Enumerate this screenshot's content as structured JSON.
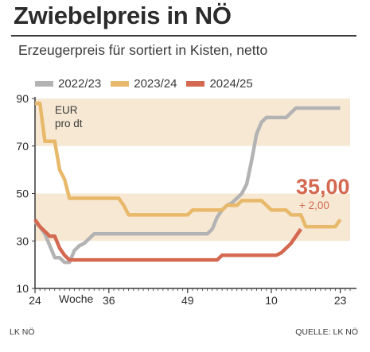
{
  "chart_data": {
    "type": "line",
    "title": "Zwiebelpreis in NÖ",
    "subtitle": "Erzeugerpreis für sortiert in Kisten, netto",
    "unit": "EUR\npro dt",
    "xlabel": "Woche",
    "ylim": [
      10,
      90
    ],
    "yticks": [
      10,
      30,
      50,
      70,
      90
    ],
    "xlim": [
      0,
      64
    ],
    "xticks": [
      {
        "pos": 0,
        "label": "24"
      },
      {
        "pos": 15,
        "label": "36"
      },
      {
        "pos": 31,
        "label": "49"
      },
      {
        "pos": 48,
        "label": "10"
      },
      {
        "pos": 62,
        "label": "23"
      }
    ],
    "bands": [
      [
        30,
        50
      ],
      [
        70,
        90
      ]
    ],
    "legend": "top",
    "series": [
      {
        "name": "2022/23",
        "color": "#b3b3b3",
        "points": [
          [
            0,
            38
          ],
          [
            1,
            36
          ],
          [
            2,
            33
          ],
          [
            3,
            28
          ],
          [
            4,
            23
          ],
          [
            5,
            23
          ],
          [
            6,
            21
          ],
          [
            7,
            21
          ],
          [
            8,
            26
          ],
          [
            9,
            28
          ],
          [
            10,
            29
          ],
          [
            11,
            31
          ],
          [
            12,
            33
          ],
          [
            13,
            33
          ],
          [
            14,
            33
          ],
          [
            15,
            33
          ],
          [
            16,
            33
          ],
          [
            17,
            33
          ],
          [
            18,
            33
          ],
          [
            19,
            33
          ],
          [
            20,
            33
          ],
          [
            21,
            33
          ],
          [
            22,
            33
          ],
          [
            23,
            33
          ],
          [
            24,
            33
          ],
          [
            25,
            33
          ],
          [
            26,
            33
          ],
          [
            27,
            33
          ],
          [
            28,
            33
          ],
          [
            29,
            33
          ],
          [
            30,
            33
          ],
          [
            31,
            33
          ],
          [
            32,
            33
          ],
          [
            33,
            33
          ],
          [
            34,
            33
          ],
          [
            35,
            33
          ],
          [
            36,
            35
          ],
          [
            37,
            40
          ],
          [
            38,
            43
          ],
          [
            39,
            45
          ],
          [
            40,
            46
          ],
          [
            41,
            48
          ],
          [
            42,
            50
          ],
          [
            43,
            54
          ],
          [
            44,
            64
          ],
          [
            45,
            75
          ],
          [
            46,
            80
          ],
          [
            47,
            82
          ],
          [
            48,
            82
          ],
          [
            49,
            82
          ],
          [
            50,
            82
          ],
          [
            51,
            82
          ],
          [
            52,
            84
          ],
          [
            53,
            86
          ],
          [
            54,
            86
          ],
          [
            55,
            86
          ],
          [
            56,
            86
          ],
          [
            57,
            86
          ],
          [
            58,
            86
          ],
          [
            59,
            86
          ],
          [
            60,
            86
          ],
          [
            61,
            86
          ],
          [
            62,
            86
          ]
        ]
      },
      {
        "name": "2023/24",
        "color": "#e8b96a",
        "points": [
          [
            0,
            88
          ],
          [
            1,
            88
          ],
          [
            2,
            72
          ],
          [
            3,
            72
          ],
          [
            4,
            72
          ],
          [
            5,
            60
          ],
          [
            6,
            56
          ],
          [
            7,
            48
          ],
          [
            8,
            48
          ],
          [
            9,
            48
          ],
          [
            10,
            48
          ],
          [
            11,
            48
          ],
          [
            12,
            48
          ],
          [
            13,
            48
          ],
          [
            14,
            48
          ],
          [
            15,
            48
          ],
          [
            16,
            48
          ],
          [
            17,
            48
          ],
          [
            18,
            45
          ],
          [
            19,
            41
          ],
          [
            20,
            41
          ],
          [
            21,
            41
          ],
          [
            22,
            41
          ],
          [
            23,
            41
          ],
          [
            24,
            41
          ],
          [
            25,
            41
          ],
          [
            26,
            41
          ],
          [
            27,
            41
          ],
          [
            28,
            41
          ],
          [
            29,
            41
          ],
          [
            30,
            41
          ],
          [
            31,
            41
          ],
          [
            32,
            43
          ],
          [
            33,
            43
          ],
          [
            34,
            43
          ],
          [
            35,
            43
          ],
          [
            36,
            43
          ],
          [
            37,
            43
          ],
          [
            38,
            43
          ],
          [
            39,
            45
          ],
          [
            40,
            45
          ],
          [
            41,
            45
          ],
          [
            42,
            47
          ],
          [
            43,
            47
          ],
          [
            44,
            47
          ],
          [
            45,
            47
          ],
          [
            46,
            47
          ],
          [
            47,
            45
          ],
          [
            48,
            43
          ],
          [
            49,
            43
          ],
          [
            50,
            43
          ],
          [
            51,
            43
          ],
          [
            52,
            41
          ],
          [
            53,
            41
          ],
          [
            54,
            41
          ],
          [
            55,
            36
          ],
          [
            56,
            36
          ],
          [
            57,
            36
          ],
          [
            58,
            36
          ],
          [
            59,
            36
          ],
          [
            60,
            36
          ],
          [
            61,
            36
          ],
          [
            62,
            39
          ]
        ]
      },
      {
        "name": "2024/25",
        "color": "#d46850",
        "points": [
          [
            0,
            39
          ],
          [
            1,
            36
          ],
          [
            2,
            34
          ],
          [
            3,
            32
          ],
          [
            4,
            32
          ],
          [
            5,
            27
          ],
          [
            6,
            24
          ],
          [
            7,
            22
          ],
          [
            8,
            22
          ],
          [
            9,
            22
          ],
          [
            10,
            22
          ],
          [
            11,
            22
          ],
          [
            12,
            22
          ],
          [
            13,
            22
          ],
          [
            14,
            22
          ],
          [
            15,
            22
          ],
          [
            16,
            22
          ],
          [
            17,
            22
          ],
          [
            18,
            22
          ],
          [
            19,
            22
          ],
          [
            20,
            22
          ],
          [
            21,
            22
          ],
          [
            22,
            22
          ],
          [
            23,
            22
          ],
          [
            24,
            22
          ],
          [
            25,
            22
          ],
          [
            26,
            22
          ],
          [
            27,
            22
          ],
          [
            28,
            22
          ],
          [
            29,
            22
          ],
          [
            30,
            22
          ],
          [
            31,
            22
          ],
          [
            32,
            22
          ],
          [
            33,
            22
          ],
          [
            34,
            22
          ],
          [
            35,
            22
          ],
          [
            36,
            22
          ],
          [
            37,
            22
          ],
          [
            38,
            24
          ],
          [
            39,
            24
          ],
          [
            40,
            24
          ],
          [
            41,
            24
          ],
          [
            42,
            24
          ],
          [
            43,
            24
          ],
          [
            44,
            24
          ],
          [
            45,
            24
          ],
          [
            46,
            24
          ],
          [
            47,
            24
          ],
          [
            48,
            24
          ],
          [
            49,
            24
          ],
          [
            50,
            25
          ],
          [
            51,
            27
          ],
          [
            52,
            29
          ],
          [
            53,
            32
          ],
          [
            54,
            35
          ]
        ]
      }
    ],
    "callout": {
      "value": "35,00",
      "change": "+ 2,00"
    },
    "source_left": "LK NÖ",
    "source_right": "QUELLE: LK NÖ"
  }
}
